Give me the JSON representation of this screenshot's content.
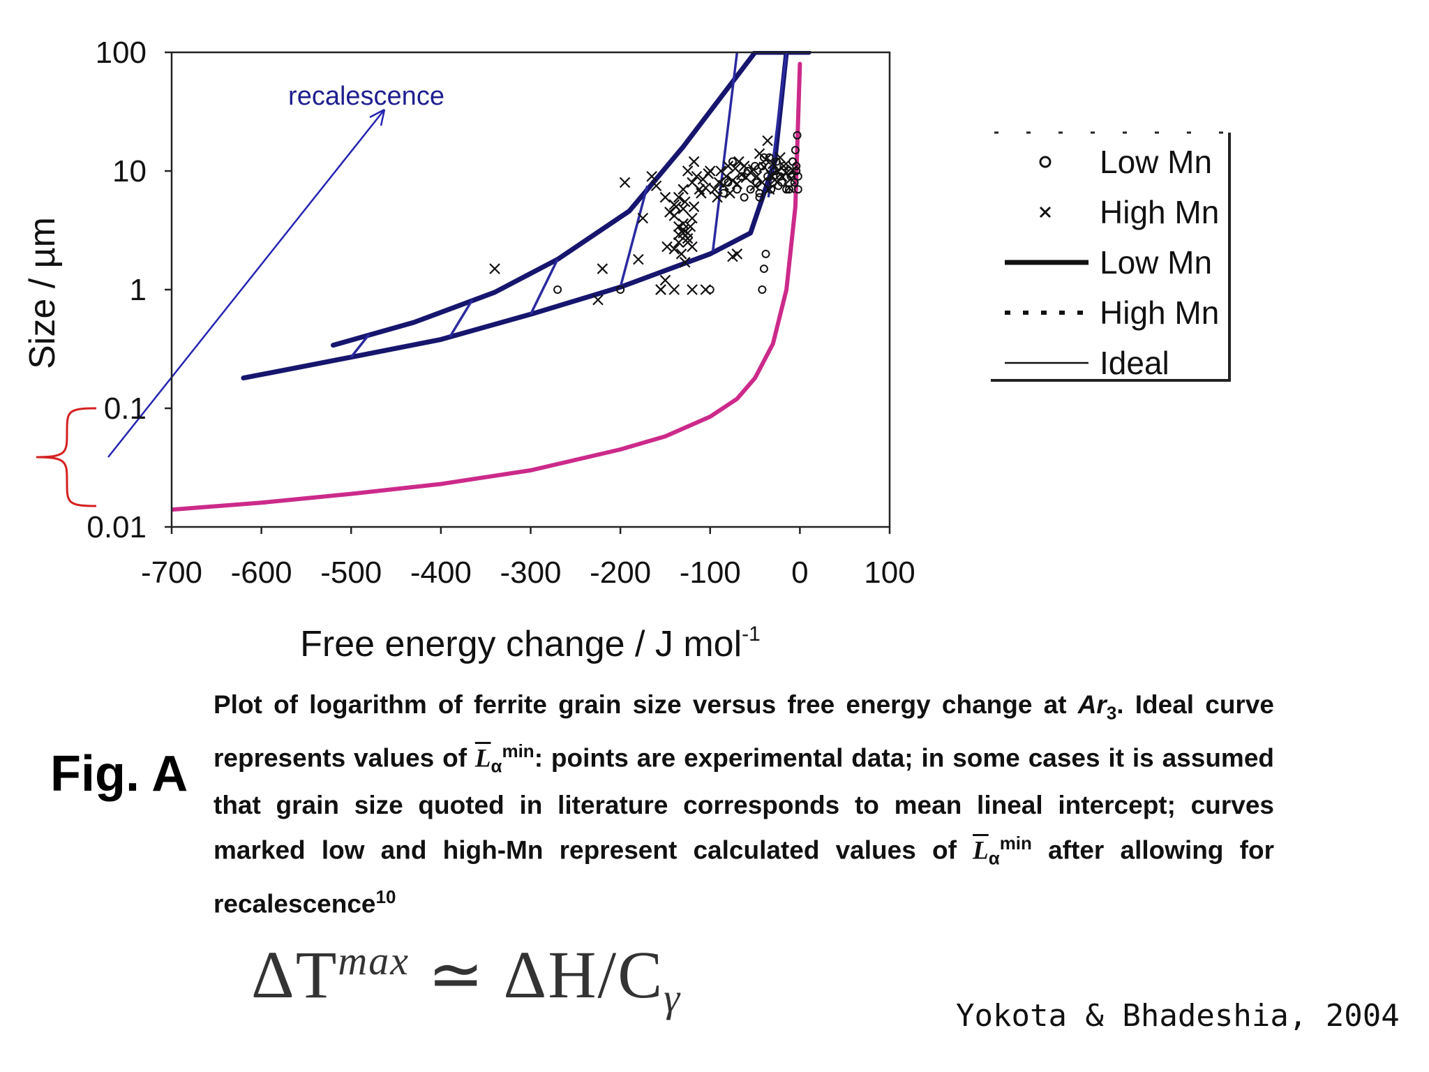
{
  "chart_data": {
    "type": "scatter",
    "ylabel": "Size / µm",
    "xlabel": "Free energy change / J mol",
    "xlabel_sup": "-1",
    "xlim": [
      -700,
      100
    ],
    "ylim": [
      0.01,
      100
    ],
    "yscale": "log",
    "x_ticks": [
      "-700",
      "-600",
      "-500",
      "-400",
      "-300",
      "-200",
      "-100",
      "0",
      "100"
    ],
    "x_tick_values": [
      -700,
      -600,
      -500,
      -400,
      -300,
      -200,
      -100,
      0,
      100
    ],
    "y_ticks": [
      "0.01",
      "0.1",
      "1",
      "10",
      "100"
    ],
    "y_tick_values": [
      0.01,
      0.1,
      1,
      10,
      100
    ],
    "grid": false,
    "legend_position": "right",
    "legend": [
      {
        "label": "Low Mn",
        "marker": "circle"
      },
      {
        "label": "High Mn",
        "marker": "cross"
      },
      {
        "label": "Low Mn",
        "style": "thick-solid"
      },
      {
        "label": "High Mn",
        "style": "dotted"
      },
      {
        "label": "Ideal",
        "style": "thin-solid"
      }
    ],
    "annotation": "recalescence",
    "series": [
      {
        "name": "Low Mn",
        "kind": "curve",
        "color": "#16166e",
        "x": [
          -520,
          -430,
          -340,
          -270,
          -190,
          -130,
          -90,
          -50,
          -10,
          10
        ],
        "y": [
          0.34,
          0.53,
          0.95,
          1.8,
          4.6,
          16,
          40,
          100,
          100,
          100
        ]
      },
      {
        "name": "High Mn",
        "kind": "curve",
        "color": "#16166e",
        "x": [
          -620,
          -500,
          -400,
          -300,
          -200,
          -100,
          -55,
          -28,
          -15
        ],
        "y": [
          0.18,
          0.27,
          0.38,
          0.62,
          1.05,
          2.0,
          3.0,
          12,
          100
        ]
      },
      {
        "name": "Ideal",
        "kind": "curve",
        "color": "#cc2a8a",
        "x": [
          -700,
          -600,
          -500,
          -400,
          -300,
          -200,
          -150,
          -100,
          -70,
          -50,
          -30,
          -15,
          -5,
          0
        ],
        "y": [
          0.014,
          0.016,
          0.019,
          0.023,
          0.03,
          0.045,
          0.058,
          0.085,
          0.12,
          0.18,
          0.35,
          1.0,
          5,
          80
        ]
      },
      {
        "name": "recalescence tie-lines",
        "kind": "segments",
        "color": "#2a2aa0",
        "segments": [
          [
            -500,
            0.27,
            -480,
            0.42
          ],
          [
            -390,
            0.4,
            -365,
            0.82
          ],
          [
            -300,
            0.62,
            -270,
            1.8
          ],
          [
            -200,
            1.05,
            -170,
            7.5
          ],
          [
            -97,
            2.1,
            -70,
            100
          ],
          [
            -35,
            6,
            -15,
            100
          ]
        ]
      },
      {
        "name": "Low Mn",
        "kind": "points",
        "marker": "circle",
        "x": [
          -270,
          -200,
          -100,
          -85,
          -80,
          -75,
          -70,
          -65,
          -62,
          -58,
          -55,
          -50,
          -48,
          -45,
          -42,
          -40,
          -38,
          -36,
          -34,
          -32,
          -30,
          -28,
          -26,
          -24,
          -22,
          -20,
          -18,
          -15,
          -12,
          -10,
          -8,
          -6,
          -5,
          -4,
          -3,
          -2,
          -40,
          -42,
          -45,
          -4,
          -2,
          -12,
          -8
        ],
        "y": [
          1.0,
          1.0,
          1.0,
          6.5,
          8,
          12,
          7,
          9,
          6,
          10,
          7,
          11,
          8,
          6.5,
          1.0,
          1.5,
          2.0,
          9,
          13,
          7,
          8,
          10,
          12,
          7.5,
          9,
          8,
          11,
          7,
          10,
          9,
          12,
          8,
          15,
          10,
          20,
          7,
          13,
          11,
          6,
          11,
          9,
          7,
          12
        ]
      },
      {
        "name": "High Mn",
        "kind": "points",
        "marker": "cross",
        "x": [
          -340,
          -220,
          -225,
          -195,
          -180,
          -175,
          -165,
          -160,
          -155,
          -150,
          -148,
          -145,
          -140,
          -138,
          -135,
          -135,
          -132,
          -130,
          -130,
          -128,
          -128,
          -125,
          -125,
          -122,
          -120,
          -120,
          -118,
          -118,
          -115,
          -112,
          -110,
          -108,
          -105,
          -102,
          -100,
          -95,
          -92,
          -90,
          -88,
          -85,
          -82,
          -80,
          -78,
          -75,
          -72,
          -70,
          -68,
          -65,
          -62,
          -60,
          -55,
          -52,
          -50,
          -48,
          -45,
          -42,
          -40,
          -38,
          -36,
          -34,
          -32,
          -30,
          -28,
          -25,
          -22,
          -20,
          -18,
          -15,
          -12,
          -10,
          -8,
          -155,
          -150,
          -140,
          -120,
          -135,
          -125,
          -120,
          -105,
          -75,
          -70,
          -125,
          -130,
          -140,
          -140,
          -135,
          -130,
          -130
        ],
        "y": [
          1.5,
          1.5,
          0.82,
          8,
          1.8,
          4,
          9,
          7.5,
          1.0,
          6,
          2.3,
          4.5,
          2.2,
          5,
          6,
          2.5,
          2.0,
          3,
          7,
          1.7,
          5.5,
          10,
          2.7,
          3.4,
          4,
          8,
          5,
          12,
          9,
          7,
          6.5,
          8.5,
          7.2,
          9.5,
          10,
          7,
          6,
          8,
          10,
          7.6,
          9,
          11,
          6.5,
          8.3,
          10.5,
          7.8,
          12,
          9.3,
          11,
          8.8,
          9.7,
          10.3,
          7.5,
          9,
          14,
          8,
          10.8,
          12.5,
          18,
          7,
          9.2,
          11.5,
          8.4,
          10,
          13,
          9,
          11,
          9.6,
          7.2,
          8.6,
          10.2,
          1.0,
          1.2,
          1.0,
          1.0,
          3.4,
          2.5,
          2.3,
          1.0,
          1.9,
          2.0,
          3.0,
          3.6,
          4.2,
          5.2,
          2.9,
          3.2,
          4.8
        ]
      }
    ]
  },
  "caption": {
    "fig_label": "Fig. A",
    "part1": "Plot of logarithm of ferrite grain size versus free energy change at ",
    "ar": "Ar",
    "ar_sub": "3",
    "part2": ". Ideal curve represents values of ",
    "sym1": "L",
    "sym1_sup": "min",
    "sym1_sub": "α",
    "part3": ": points are experimental data; in some cases it is assumed that grain size quoted in literature corresponds to mean lineal intercept; curves marked low and high-Mn represent calculated values of ",
    "sym2": "L",
    "sym2_sup": "min",
    "sym2_sub": "α",
    "part4": " after allowing for recalescence",
    "ref": "10"
  },
  "equation": {
    "lhs": "ΔT",
    "lhs_sup": "max",
    "op": " ≃ ",
    "rhs": "ΔH/C",
    "rhs_sub": "γ"
  },
  "citation": "Yokota & Bhadeshia, 2004",
  "colors": {
    "curve": "#16166e",
    "tie": "#2a2aa0",
    "ideal": "#cc2a8a",
    "bracket": "#d42020",
    "arrow": "#2424b0"
  }
}
